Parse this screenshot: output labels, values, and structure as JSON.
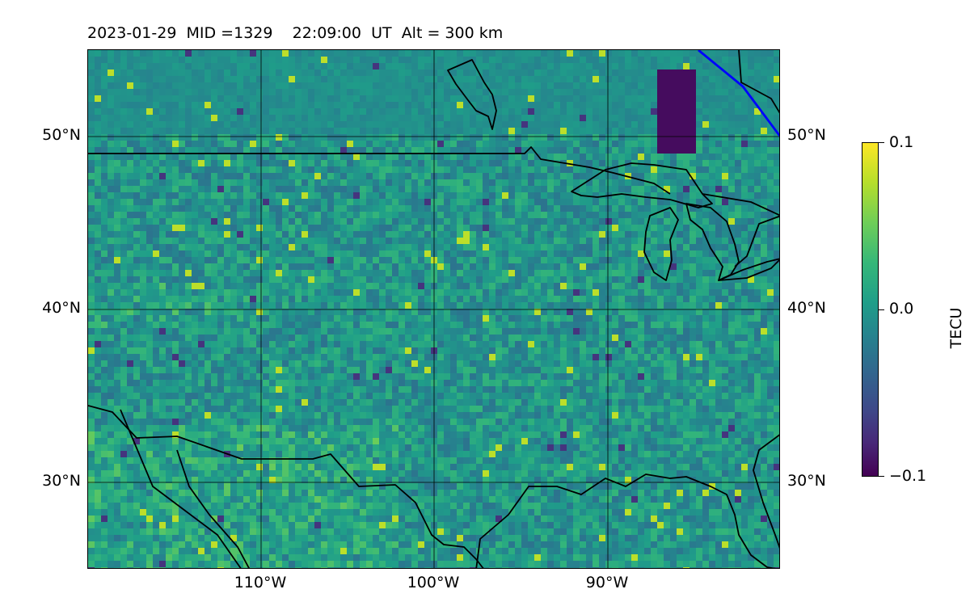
{
  "title": {
    "date": "2023-01-29",
    "mid": "MID =1329",
    "time": "22:09:00",
    "ut": "UT",
    "alt": "Alt = 300 km"
  },
  "map": {
    "lon_range": [
      -120,
      -80
    ],
    "lat_range": [
      25,
      55
    ],
    "lat_labels": [
      "50°N",
      "40°N",
      "30°N"
    ],
    "lon_labels": [
      "110°W",
      "100°W",
      "90°W"
    ],
    "colormap": "viridis",
    "coastline_color": "#000000",
    "terminator_color": "#0000ff"
  },
  "colorbar": {
    "label": "TECU",
    "ticks": [
      "0.1",
      "0.0",
      "−0.1"
    ],
    "min": -0.1,
    "max": 0.1
  }
}
